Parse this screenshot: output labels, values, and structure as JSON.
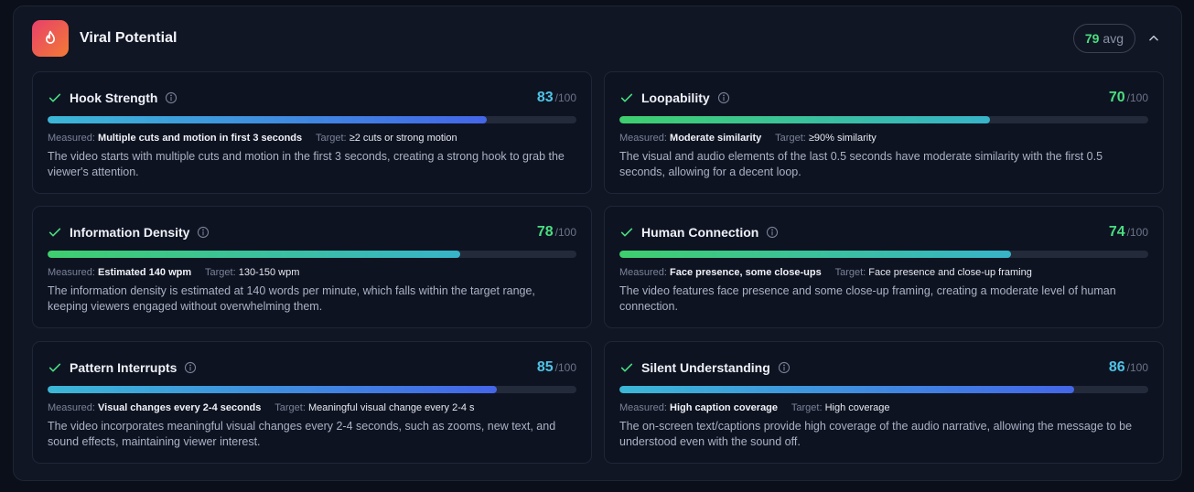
{
  "header": {
    "title": "Viral Potential",
    "avg_value": "79",
    "avg_label": "avg",
    "icon": "flame-icon"
  },
  "labels": {
    "measured": "Measured:",
    "target": "Target:",
    "of": "/100"
  },
  "metrics": [
    {
      "name": "Hook Strength",
      "score": "83",
      "progress": 0.83,
      "color": "blue",
      "measured": "Multiple cuts and motion in first 3 seconds",
      "target": "≥2 cuts or strong motion",
      "description": "The video starts with multiple cuts and motion in the first 3 seconds, creating a strong hook to grab the viewer's attention."
    },
    {
      "name": "Loopability",
      "score": "70",
      "progress": 0.7,
      "color": "green",
      "measured": "Moderate similarity",
      "target": "≥90% similarity",
      "description": "The visual and audio elements of the last 0.5 seconds have moderate similarity with the first 0.5 seconds, allowing for a decent loop."
    },
    {
      "name": "Information Density",
      "score": "78",
      "progress": 0.78,
      "color": "green",
      "measured": "Estimated 140 wpm",
      "target": "130-150 wpm",
      "description": "The information density is estimated at 140 words per minute, which falls within the target range, keeping viewers engaged without overwhelming them."
    },
    {
      "name": "Human Connection",
      "score": "74",
      "progress": 0.74,
      "color": "green",
      "measured": "Face presence, some close-ups",
      "target": "Face presence and close-up framing",
      "description": "The video features face presence and some close-up framing, creating a moderate level of human connection."
    },
    {
      "name": "Pattern Interrupts",
      "score": "85",
      "progress": 0.85,
      "color": "blue",
      "measured": "Visual changes every 2-4 seconds",
      "target": "Meaningful visual change every 2-4 s",
      "description": "The video incorporates meaningful visual changes every 2-4 seconds, such as zooms, new text, and sound effects, maintaining viewer interest."
    },
    {
      "name": "Silent Understanding",
      "score": "86",
      "progress": 0.86,
      "color": "blue",
      "measured": "High caption coverage",
      "target": "High coverage",
      "description": "The on-screen text/captions provide high coverage of the audio narrative, allowing the message to be understood even with the sound off."
    }
  ],
  "colors": {
    "accent_blue": "#4ec3e6",
    "accent_green": "#4ade80",
    "check": "#4ade80"
  }
}
